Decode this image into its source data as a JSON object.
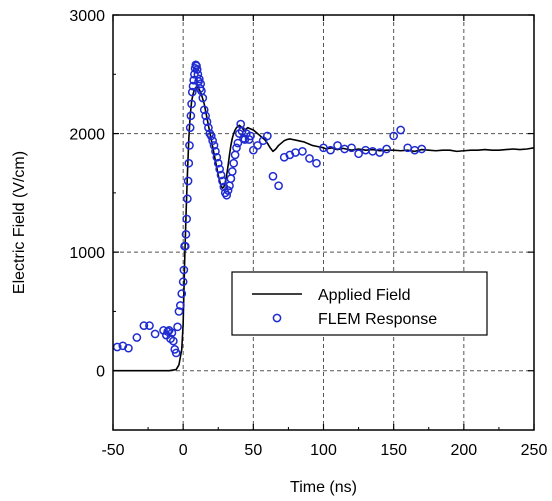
{
  "chart_data": {
    "type": "line",
    "xlabel": "Time (ns)",
    "ylabel": "Electric Field (V/cm)",
    "xlim": [
      -50,
      250
    ],
    "ylim": [
      -500,
      3000
    ],
    "x_ticks": [
      -50,
      0,
      50,
      100,
      150,
      200,
      250
    ],
    "x_tick_labels": [
      "-50",
      "0",
      "50",
      "100",
      "150",
      "200",
      "250"
    ],
    "y_ticks": [
      0,
      1000,
      2000,
      3000
    ],
    "y_tick_labels": [
      "0",
      "1000",
      "2000",
      "3000"
    ],
    "grid": true,
    "legend": "center-right",
    "series": [
      {
        "name": "Applied Field",
        "style": "line",
        "color": "#000000",
        "x": [
          -50,
          -40,
          -30,
          -20,
          -10,
          -5,
          -3,
          -1,
          0,
          1,
          2,
          3,
          4,
          5,
          6,
          7,
          8,
          9,
          10,
          11,
          12,
          13,
          14,
          15,
          16,
          17,
          18,
          19,
          20,
          21,
          22,
          23,
          24,
          25,
          26,
          27,
          28,
          29,
          30,
          31,
          32,
          33,
          34,
          35,
          36,
          37,
          38,
          39,
          40,
          41,
          42,
          43,
          44,
          45,
          46,
          48,
          50,
          52,
          54,
          56,
          58,
          60,
          62,
          64,
          66,
          68,
          70,
          72,
          74,
          76,
          78,
          80,
          82,
          84,
          86,
          88,
          90,
          92,
          94,
          96,
          98,
          100,
          102,
          104,
          106,
          108,
          110,
          112,
          114,
          116,
          118,
          120,
          125,
          130,
          135,
          140,
          145,
          150,
          155,
          160,
          165,
          170,
          175,
          180,
          185,
          190,
          195,
          200,
          205,
          210,
          215,
          220,
          225,
          230,
          235,
          240,
          245,
          250
        ],
        "y": [
          0,
          0,
          0,
          0,
          0,
          10,
          50,
          180,
          400,
          900,
          1300,
          1650,
          1950,
          2150,
          2270,
          2330,
          2370,
          2390,
          2390,
          2380,
          2360,
          2330,
          2290,
          2250,
          2190,
          2130,
          2070,
          2010,
          1950,
          1890,
          1830,
          1770,
          1710,
          1650,
          1600,
          1560,
          1540,
          1550,
          1590,
          1650,
          1730,
          1820,
          1900,
          1960,
          2000,
          2030,
          2050,
          2060,
          2070,
          2060,
          2050,
          2030,
          2020,
          2040,
          2050,
          2040,
          2030,
          2010,
          1990,
          1970,
          1950,
          1920,
          1880,
          1850,
          1870,
          1900,
          1920,
          1940,
          1950,
          1955,
          1950,
          1945,
          1940,
          1935,
          1930,
          1920,
          1910,
          1900,
          1895,
          1890,
          1885,
          1880,
          1870,
          1875,
          1880,
          1870,
          1865,
          1870,
          1875,
          1870,
          1865,
          1860,
          1870,
          1860,
          1865,
          1855,
          1860,
          1860,
          1855,
          1860,
          1850,
          1865,
          1860,
          1855,
          1860,
          1860,
          1850,
          1855,
          1860,
          1860,
          1865,
          1860,
          1860,
          1865,
          1870,
          1865,
          1870,
          1880
        ]
      },
      {
        "name": "FLEM Response",
        "style": "scatter",
        "color": "#1f2bd0",
        "x": [
          -47,
          -43,
          -39,
          -33,
          -28,
          -24,
          -20,
          -14,
          -12,
          -11,
          -10,
          -9,
          -8,
          -7,
          -6,
          -5,
          -4,
          -3,
          -2,
          -1,
          0,
          0.5,
          1,
          1.5,
          2,
          2.5,
          3,
          3.5,
          4,
          4.5,
          5,
          5.5,
          6,
          6.5,
          7,
          7.5,
          8,
          8.5,
          9,
          9.5,
          10,
          10.5,
          11,
          11.5,
          12,
          12.5,
          13,
          14,
          15,
          16,
          17,
          18,
          19,
          20,
          21,
          22,
          23,
          24,
          25,
          26,
          27,
          28,
          29,
          30,
          31,
          32,
          33,
          34,
          35,
          36,
          37,
          38,
          39,
          40,
          41,
          42,
          43,
          44,
          45,
          47,
          48,
          50,
          53,
          57,
          60,
          64,
          68,
          72,
          76,
          80,
          85,
          90,
          95,
          100,
          105,
          110,
          115,
          120,
          125,
          130,
          135,
          140,
          145,
          150,
          155,
          160,
          165,
          170
        ],
        "y": [
          200,
          210,
          190,
          280,
          380,
          380,
          310,
          340,
          300,
          330,
          340,
          270,
          320,
          250,
          180,
          150,
          370,
          500,
          550,
          650,
          750,
          850,
          1050,
          1050,
          1150,
          1280,
          1450,
          1600,
          1750,
          1900,
          2050,
          2150,
          2250,
          2350,
          2400,
          2450,
          2500,
          2550,
          2580,
          2570,
          2540,
          2500,
          2440,
          2460,
          2380,
          2420,
          2360,
          2300,
          2200,
          2150,
          2100,
          2050,
          2000,
          1980,
          1940,
          1900,
          1850,
          1800,
          1750,
          1700,
          1650,
          1600,
          1550,
          1500,
          1480,
          1520,
          1560,
          1620,
          1680,
          1750,
          1820,
          1880,
          1920,
          2000,
          2080,
          2020,
          1960,
          1950,
          2000,
          1950,
          1980,
          1860,
          1900,
          1940,
          1980,
          1640,
          1560,
          1800,
          1820,
          1840,
          1850,
          1790,
          1750,
          1880,
          1860,
          1900,
          1870,
          1880,
          1830,
          1860,
          1850,
          1840,
          1870,
          1980,
          2030,
          1880,
          1860,
          1870
        ]
      }
    ]
  }
}
